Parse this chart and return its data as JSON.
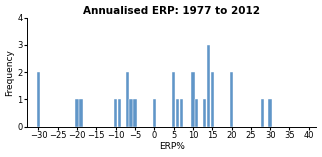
{
  "title": "Annualised ERP: 1977 to 2012",
  "xlabel": "ERP%",
  "ylabel": "Frequency",
  "bar_color": "#6096c8",
  "xlim": [
    -33,
    42
  ],
  "ylim": [
    0,
    4
  ],
  "xticks": [
    -30,
    -25,
    -20,
    -15,
    -10,
    -5,
    0,
    5,
    10,
    15,
    20,
    25,
    30,
    35,
    40
  ],
  "yticks": [
    0,
    1,
    2,
    3,
    4
  ],
  "bar_positions": [
    -30,
    -20,
    -19,
    -10,
    -9,
    -7,
    -6,
    -5,
    0,
    5,
    6,
    7,
    10,
    11,
    13,
    14,
    15,
    20,
    28,
    30
  ],
  "bar_heights": [
    2,
    1,
    1,
    1,
    1,
    2,
    1,
    1,
    1,
    2,
    1,
    1,
    2,
    1,
    1,
    3,
    2,
    2,
    1,
    1
  ],
  "bar_width": 0.85,
  "bg_color": "#ffffff",
  "title_fontsize": 7.5,
  "label_fontsize": 6.5,
  "tick_fontsize": 6
}
